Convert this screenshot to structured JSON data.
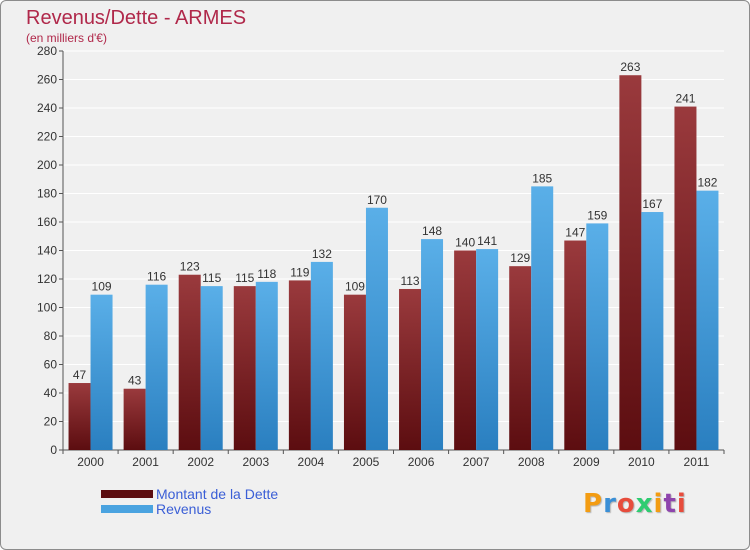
{
  "title": "Revenus/Dette - ARMES",
  "subtitle": "(en milliers d'€)",
  "logo": "Proxiti",
  "colors": {
    "debt": "#8b1f22",
    "revenue": "#4aa3e0",
    "background": "#f0f0f0",
    "title": "#b0284a",
    "legend_text": "#3a5ed6"
  },
  "chart_data": {
    "type": "bar",
    "categories": [
      "2000",
      "2001",
      "2002",
      "2003",
      "2004",
      "2005",
      "2006",
      "2007",
      "2008",
      "2009",
      "2010",
      "2011"
    ],
    "series": [
      {
        "name": "Montant de la Dette",
        "values": [
          47,
          43,
          123,
          115,
          119,
          109,
          113,
          140,
          129,
          147,
          263,
          241
        ]
      },
      {
        "name": "Revenus",
        "values": [
          109,
          116,
          115,
          118,
          132,
          170,
          148,
          141,
          185,
          159,
          167,
          182
        ]
      }
    ],
    "ylim": [
      0,
      280
    ],
    "yticks": [
      0,
      20,
      40,
      60,
      80,
      100,
      120,
      140,
      160,
      180,
      200,
      220,
      240,
      260,
      280
    ],
    "grid": true,
    "legend_position": "bottom-left"
  }
}
